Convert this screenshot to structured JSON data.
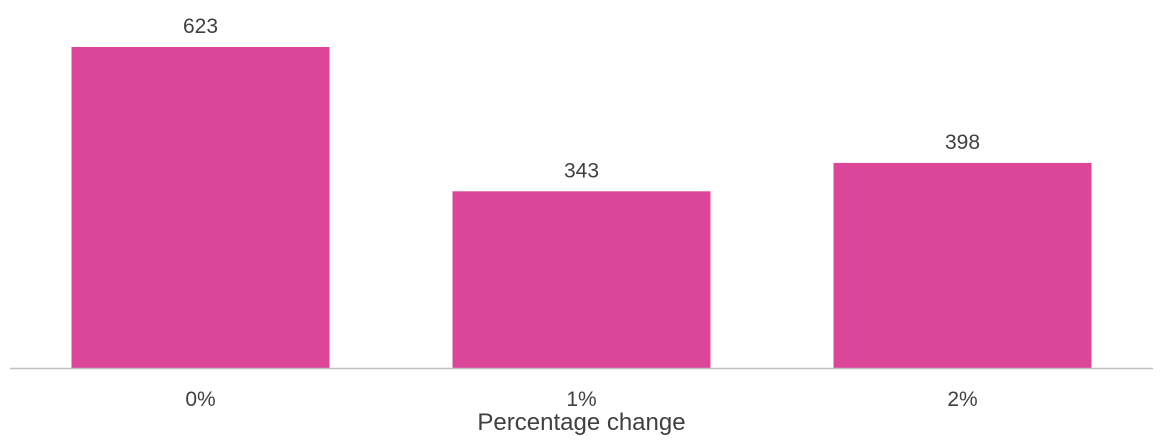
{
  "chart_data": {
    "type": "bar",
    "categories": [
      "0%",
      "1%",
      "2%"
    ],
    "values": [
      623,
      343,
      398
    ],
    "data_labels": [
      "623",
      "343",
      "398"
    ],
    "title": "",
    "xlabel": "Percentage change",
    "ylabel": "",
    "ylim": [
      0,
      700
    ],
    "grid": false,
    "legend": "none",
    "bar_color": "#DB4699",
    "axis_color": "#BFBFBF",
    "text_color": "#404040"
  }
}
